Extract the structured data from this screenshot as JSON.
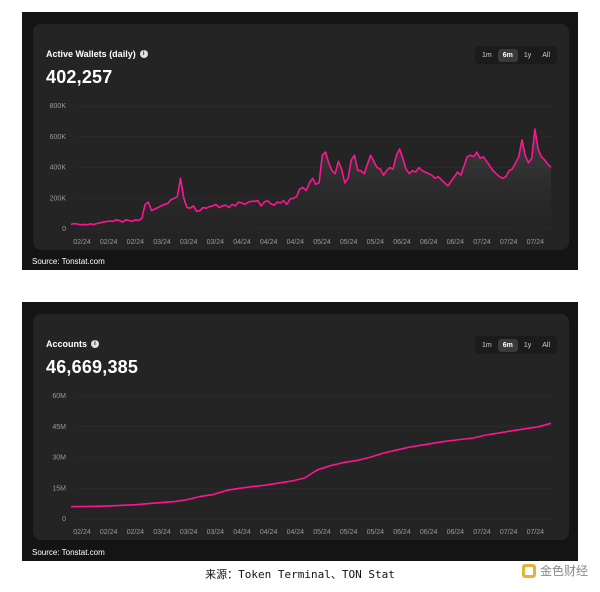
{
  "panels": [
    {
      "card_title": "Active Wallets (daily)",
      "big_number": "402,257",
      "tabs": [
        "1m",
        "6m",
        "1y",
        "All"
      ],
      "active_tab": "6m",
      "source": "Source: Tonstat.com"
    },
    {
      "card_title": "Accounts",
      "big_number": "46,669,385",
      "tabs": [
        "1m",
        "6m",
        "1y",
        "All"
      ],
      "active_tab": "6m",
      "source": "Source: Tonstat.com"
    }
  ],
  "caption": "来源：Token Terminal、TON Stat",
  "brand": "金色财经",
  "colors": {
    "line": "#ff1493",
    "panel_bg": "#141414",
    "card_bg": "#242424"
  },
  "chart_data": [
    {
      "type": "area",
      "title": "Active Wallets (daily)",
      "x_tick_labels": [
        "02/24",
        "02/24",
        "02/24",
        "03/24",
        "03/24",
        "03/24",
        "04/24",
        "04/24",
        "04/24",
        "05/24",
        "05/24",
        "05/24",
        "06/24",
        "06/24",
        "06/24",
        "07/24",
        "07/24",
        "07/24"
      ],
      "y_ticks": [
        "0",
        "200K",
        "400K",
        "600K",
        "800K"
      ],
      "ylim": [
        0,
        800000
      ],
      "grid": true,
      "series": [
        {
          "values": [
            30000,
            35000,
            32000,
            28000,
            30000,
            27000,
            33000,
            30000,
            35000,
            40000,
            45000,
            48000,
            52000,
            50000,
            60000,
            55000,
            45000,
            60000,
            55000,
            50000,
            60000,
            55000,
            70000,
            160000,
            175000,
            120000,
            130000,
            140000,
            150000,
            160000,
            165000,
            190000,
            200000,
            210000,
            330000,
            200000,
            140000,
            135000,
            150000,
            115000,
            120000,
            140000,
            135000,
            145000,
            150000,
            160000,
            140000,
            150000,
            155000,
            140000,
            160000,
            150000,
            175000,
            170000,
            160000,
            175000,
            180000,
            180000,
            185000,
            150000,
            175000,
            185000,
            165000,
            155000,
            175000,
            170000,
            185000,
            160000,
            195000,
            200000,
            210000,
            260000,
            270000,
            250000,
            300000,
            330000,
            290000,
            300000,
            480000,
            500000,
            430000,
            380000,
            360000,
            440000,
            390000,
            300000,
            330000,
            450000,
            480000,
            380000,
            380000,
            360000,
            420000,
            480000,
            440000,
            400000,
            390000,
            350000,
            380000,
            400000,
            390000,
            480000,
            520000,
            460000,
            390000,
            360000,
            380000,
            370000,
            400000,
            380000,
            370000,
            360000,
            350000,
            330000,
            340000,
            320000,
            300000,
            280000,
            310000,
            340000,
            370000,
            350000,
            410000,
            470000,
            480000,
            470000,
            500000,
            460000,
            470000,
            440000,
            410000,
            380000,
            360000,
            340000,
            330000,
            340000,
            380000,
            390000,
            430000,
            470000,
            580000,
            480000,
            430000,
            460000,
            650000,
            520000,
            470000,
            450000,
            420000,
            402257
          ]
        }
      ]
    },
    {
      "type": "line",
      "title": "Accounts",
      "x_tick_labels": [
        "02/24",
        "02/24",
        "02/24",
        "03/24",
        "03/24",
        "03/24",
        "04/24",
        "04/24",
        "04/24",
        "05/24",
        "05/24",
        "05/24",
        "06/24",
        "06/24",
        "06/24",
        "07/24",
        "07/24",
        "07/24"
      ],
      "y_ticks": [
        "0",
        "15M",
        "30M",
        "45M",
        "60M"
      ],
      "ylim": [
        0,
        60000000
      ],
      "grid": true,
      "series": [
        {
          "values": [
            6000000,
            6100000,
            6200000,
            6400000,
            6700000,
            7000000,
            7500000,
            8000000,
            8500000,
            9500000,
            11000000,
            12000000,
            14000000,
            15000000,
            15800000,
            16500000,
            17500000,
            18500000,
            20000000,
            24000000,
            26000000,
            27500000,
            28500000,
            30000000,
            32000000,
            33500000,
            35000000,
            36000000,
            37000000,
            38000000,
            38800000,
            39500000,
            41000000,
            42000000,
            43000000,
            44000000,
            45000000,
            46669385
          ]
        }
      ]
    }
  ]
}
